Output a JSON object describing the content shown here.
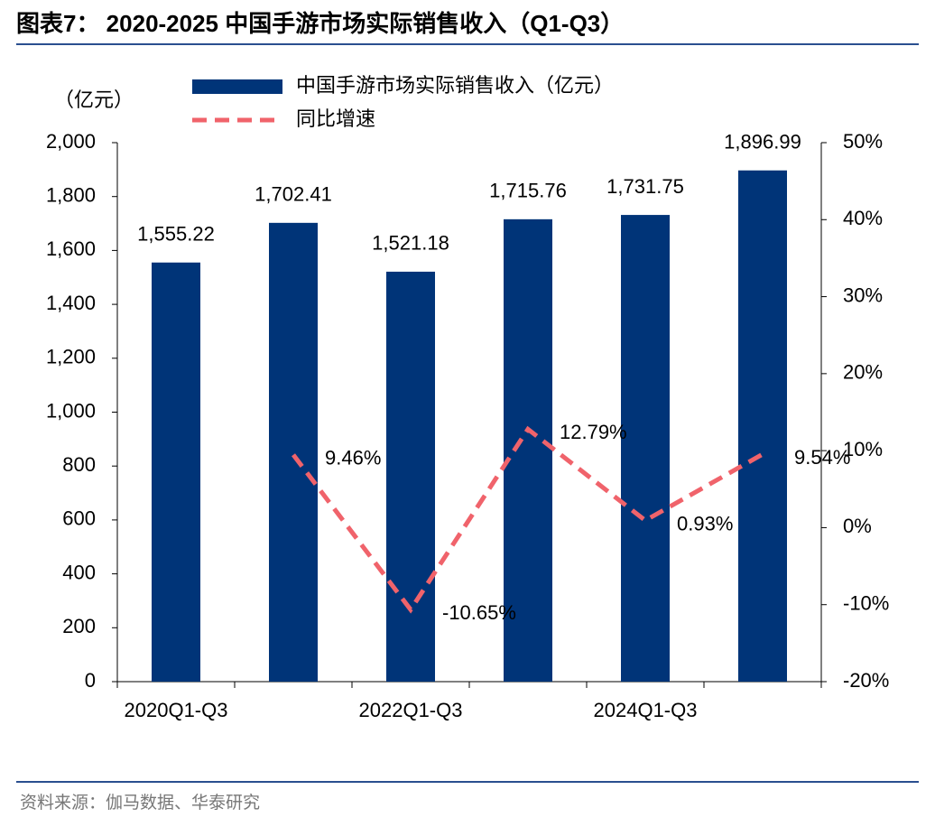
{
  "chart_data": {
    "type": "bar_line",
    "title": "图表7： 2020-2025 中国手游市场实际销售收入（Q1-Q3）",
    "y_axis_label": "（亿元）",
    "source": "资料来源：伽马数据、华泰研究",
    "categories": [
      "2020Q1-Q3",
      null,
      "2022Q1-Q3",
      null,
      "2024Q1-Q3",
      null
    ],
    "series": [
      {
        "name": "中国手游市场实际销售收入（亿元）",
        "color": "#003478",
        "kind": "bar",
        "values": [
          1555.22,
          1702.41,
          1521.18,
          1715.76,
          1731.75,
          1896.99
        ],
        "value_labels": [
          "1,555.22",
          "1,702.41",
          "1,521.18",
          "1,715.76",
          "1,731.75",
          "1,896.99"
        ]
      },
      {
        "name": "同比增速",
        "color": "#f0636b",
        "kind": "line",
        "axis": "y2",
        "values": [
          null,
          9.46,
          -10.65,
          12.79,
          0.93,
          9.54
        ],
        "value_labels": [
          null,
          "9.46%",
          "-10.65%",
          "12.79%",
          "0.93%",
          "9.54%"
        ]
      }
    ],
    "ylim": [
      0,
      2000
    ],
    "yticks": [
      0,
      200,
      400,
      600,
      800,
      {
        "value": 1000,
        "label": "1,000"
      },
      {
        "value": 1200,
        "label": "1,200"
      },
      {
        "value": 1400,
        "label": "1,400"
      },
      {
        "value": 1600,
        "label": "1,600"
      },
      {
        "value": 1800,
        "label": "1,800"
      },
      {
        "value": 2000,
        "label": "2,000"
      }
    ],
    "y2lim": [
      -20,
      50
    ],
    "y2ticks": [
      {
        "value": -20,
        "label": "-20%"
      },
      {
        "value": -10,
        "label": "-10%"
      },
      {
        "value": 0,
        "label": "0%"
      },
      {
        "value": 10,
        "label": "10%"
      },
      {
        "value": 20,
        "label": "20%"
      },
      {
        "value": 30,
        "label": "30%"
      },
      {
        "value": 40,
        "label": "40%"
      },
      {
        "value": 50,
        "label": "50%"
      }
    ],
    "grid": false,
    "legend": "top"
  }
}
